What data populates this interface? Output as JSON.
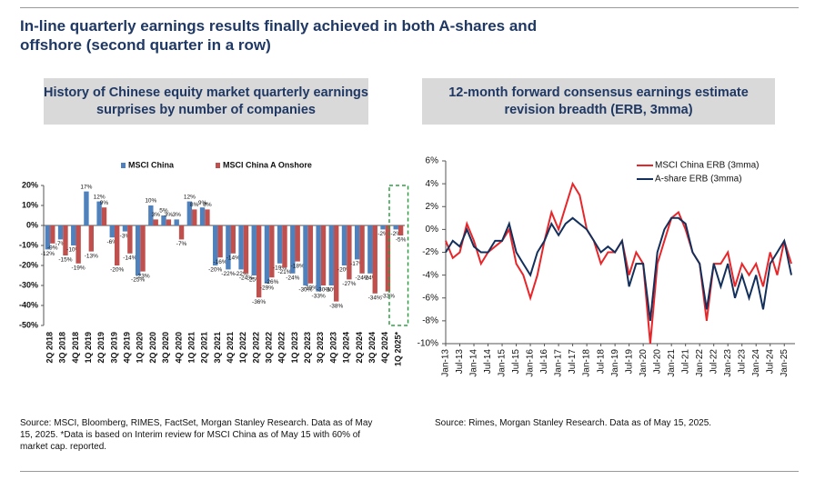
{
  "header": {
    "title": "In-line quarterly earnings results finally achieved in both A-shares and offshore (second quarter in a row)"
  },
  "chart_data": [
    {
      "type": "bar",
      "title": "History of Chinese equity market quarterly earnings surprises by number of companies",
      "categories": [
        "2Q 2018",
        "3Q 2018",
        "4Q 2018",
        "1Q 2019",
        "2Q 2019",
        "3Q 2019",
        "4Q 2019",
        "1Q 2020",
        "2Q 2020",
        "3Q 2020",
        "4Q 2020",
        "1Q 2021",
        "2Q 2021",
        "3Q 2021",
        "4Q 2021",
        "1Q 2022",
        "2Q 2022",
        "3Q 2022",
        "4Q 2022",
        "1Q 2023",
        "2Q 2023",
        "3Q 2023",
        "4Q 2023",
        "1Q 2024",
        "2Q 2024",
        "3Q 2024",
        "4Q 2024",
        "1Q 2025*"
      ],
      "series": [
        {
          "name": "MSCI China",
          "color": "#4f81bd",
          "values": [
            -12,
            -7,
            -10,
            17,
            12,
            -6,
            -3,
            -25,
            10,
            5,
            3,
            12,
            9,
            -20,
            -22,
            -22,
            -25,
            -29,
            -19,
            -24,
            -30,
            -33,
            -30,
            -20,
            -17,
            -24,
            -2,
            -2
          ],
          "value_labels": [
            "-12%",
            "-7%",
            "-10%",
            "17%",
            "12%",
            "-6%",
            "-3%",
            "-25%",
            "10%",
            "5%",
            "3%",
            "12%",
            "9%",
            "-20%",
            "-22%",
            "-22%",
            "-25%",
            "-29%",
            "-19%",
            "-24%",
            "-30%",
            "-33%",
            "-30%",
            "-20%",
            "-17%",
            "-24%",
            "-2%",
            "-2%"
          ]
        },
        {
          "name": "MSCI China A Onshore",
          "color": "#c0504d",
          "values": [
            -9,
            -15,
            -19,
            -13,
            9,
            -20,
            -14,
            -23,
            3,
            3,
            -7,
            8,
            8,
            -16,
            -14,
            -24,
            -36,
            -26,
            -21,
            -18,
            -29,
            -30,
            -38,
            -27,
            -24,
            -34,
            -33,
            -5
          ],
          "value_labels": [
            "-9%",
            "-15%",
            "-19%",
            "-13%",
            "9%",
            "-20%",
            "-14%",
            "-23%",
            "3%",
            "3%",
            "-7%",
            "8%",
            "8%",
            "-16%",
            "-14%",
            "-24%",
            "-36%",
            "-26%",
            "-21%",
            "-18%",
            "-29%",
            "-30%",
            "-38%",
            "-27%",
            "-24%",
            "-34%",
            "-33%",
            "-5%"
          ]
        }
      ],
      "ylim": [
        -50,
        20
      ],
      "yticks": [
        {
          "value": -50,
          "label": "-50%"
        },
        {
          "value": -40,
          "label": "-40%"
        },
        {
          "value": -30,
          "label": "-30%"
        },
        {
          "value": -20,
          "label": "-20%"
        },
        {
          "value": -10,
          "label": "-10%"
        },
        {
          "value": 0,
          "label": "0%"
        },
        {
          "value": 10,
          "label": "10%"
        },
        {
          "value": 20,
          "label": "20%"
        }
      ],
      "legend": "top",
      "source": "Source: MSCI, Bloomberg, RIMES, FactSet, Morgan Stanley Research. Data as of May 15, 2025. *Data is based on Interim review for MSCI China as of May 15 with 60% of market cap. reported."
    },
    {
      "type": "line",
      "title": "12-month forward consensus earnings estimate revision breadth (ERB, 3mma)",
      "categories": [
        "Jan-13",
        null,
        "Jul-13",
        null,
        "Jan-14",
        null,
        "Jul-14",
        null,
        "Jan-15",
        null,
        "Jul-15",
        null,
        "Jan-16",
        null,
        "Jul-16",
        null,
        "Jan-17",
        null,
        "Jul-17",
        null,
        "Jan-18",
        null,
        "Jul-18",
        null,
        "Jan-19",
        null,
        "Jul-19",
        null,
        "Jan-20",
        null,
        "Jul-20",
        null,
        "Jan-21",
        null,
        "Jul-21",
        null,
        "Jan-22",
        null,
        "Jul-22",
        null,
        "Jan-23",
        null,
        "Jul-23",
        null,
        "Jan-24",
        null,
        "Jul-24",
        null,
        "Jan-25",
        null
      ],
      "series": [
        {
          "name": "MSCI China ERB (3mma)",
          "color": "#e8262a",
          "values": [
            -1,
            -2.5,
            -2,
            0.5,
            -1,
            -3,
            -2,
            -1.5,
            -1,
            0,
            -3,
            -4,
            -6,
            -4,
            -1,
            1.5,
            0,
            2,
            4,
            3,
            0,
            -1,
            -3,
            -2,
            -2,
            -1,
            -4,
            -2,
            -3,
            -10,
            -3,
            -1,
            1,
            1.5,
            0,
            -2,
            -3,
            -8,
            -3,
            -3,
            -2,
            -5,
            -3,
            -4,
            -3,
            -5,
            -2,
            -4,
            -1,
            -3
          ]
        },
        {
          "name": "A-share ERB (3mma)",
          "color": "#13305c",
          "values": [
            -2,
            -1,
            -1.5,
            0,
            -1.5,
            -2,
            -2,
            -1,
            -1,
            0.5,
            -2,
            -3,
            -4,
            -2,
            -1,
            0.5,
            -0.5,
            0.5,
            1,
            0.5,
            0,
            -1,
            -2,
            -1.5,
            -2,
            -1,
            -5,
            -3,
            -3,
            -8,
            -2,
            0,
            1,
            1,
            0.5,
            -2,
            -3,
            -7,
            -3,
            -5,
            -3,
            -6,
            -4,
            -6,
            -4,
            -7,
            -3,
            -2,
            -1,
            -4
          ]
        }
      ],
      "ylim": [
        -10,
        6
      ],
      "yticks": [
        {
          "value": -10,
          "label": "-10%"
        },
        {
          "value": -8,
          "label": "-8%"
        },
        {
          "value": -6,
          "label": "-6%"
        },
        {
          "value": -4,
          "label": "-4%"
        },
        {
          "value": -2,
          "label": "-2%"
        },
        {
          "value": 0,
          "label": "0%"
        },
        {
          "value": 2,
          "label": "2%"
        },
        {
          "value": 4,
          "label": "4%"
        },
        {
          "value": 6,
          "label": "6%"
        }
      ],
      "legend": "top-right",
      "source": "Source: Rimes, Morgan Stanley Research. Data as of May 15, 2025."
    }
  ]
}
